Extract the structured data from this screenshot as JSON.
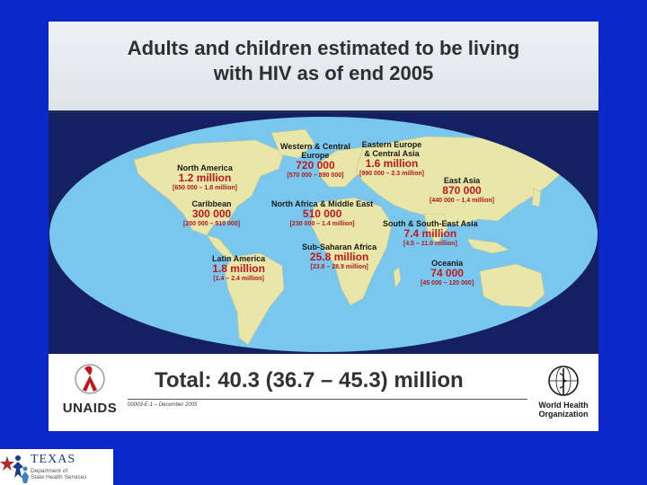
{
  "slide": {
    "title_line1": "Adults and children estimated to be living",
    "title_line2": "with HIV as of end 2005",
    "total": "Total: 40.3 (36.7 – 45.3) million",
    "slide_code": "00003-E-1 – December 2005"
  },
  "regions": [
    {
      "name_lines": [
        "North America"
      ],
      "value": "1.2 million",
      "range": "[650 000 – 1.8 million]"
    },
    {
      "name_lines": [
        "Caribbean"
      ],
      "value": "300 000",
      "range": "[200 000 – 510 000]"
    },
    {
      "name_lines": [
        "Latin America"
      ],
      "value": "1.8 million",
      "range": "[1.4 – 2.4 million]"
    },
    {
      "name_lines": [
        "Western & Central",
        "Europe"
      ],
      "value": "720 000",
      "range": "[570 000 – 890 000]"
    },
    {
      "name_lines": [
        "North Africa & Middle East"
      ],
      "value": "510 000",
      "range": "[230 000 – 1.4 million]"
    },
    {
      "name_lines": [
        "Sub-Saharan Africa"
      ],
      "value": "25.8 million",
      "range": "[23.8 – 28.9 million]"
    },
    {
      "name_lines": [
        "Eastern Europe",
        "& Central Asia"
      ],
      "value": "1.6 million",
      "range": "[990 000 – 2.3 million]"
    },
    {
      "name_lines": [
        "East Asia"
      ],
      "value": "870 000",
      "range": "[440 000 – 1.4 million]"
    },
    {
      "name_lines": [
        "South & South-East Asia"
      ],
      "value": "7.4 million",
      "range": "[4.5 – 11.0 million]"
    },
    {
      "name_lines": [
        "Oceania"
      ],
      "value": "74 000",
      "range": "[45 000 – 120 000]"
    }
  ],
  "logos": {
    "unaids": "UNAIDS",
    "who_line1": "World Health",
    "who_line2": "Organization",
    "texas_word": "TEXAS",
    "texas_sub1": "Department of",
    "texas_sub2": "State Health Services"
  },
  "colors": {
    "page_background": "#0d28c9",
    "map_panel": "#152063",
    "ocean": "#79c7ee",
    "land": "#e8e6a8",
    "value_text": "#c0181d"
  },
  "icons": [
    "unaids-ribbon-icon",
    "who-emblem-icon",
    "texas-star-figures-icon"
  ]
}
